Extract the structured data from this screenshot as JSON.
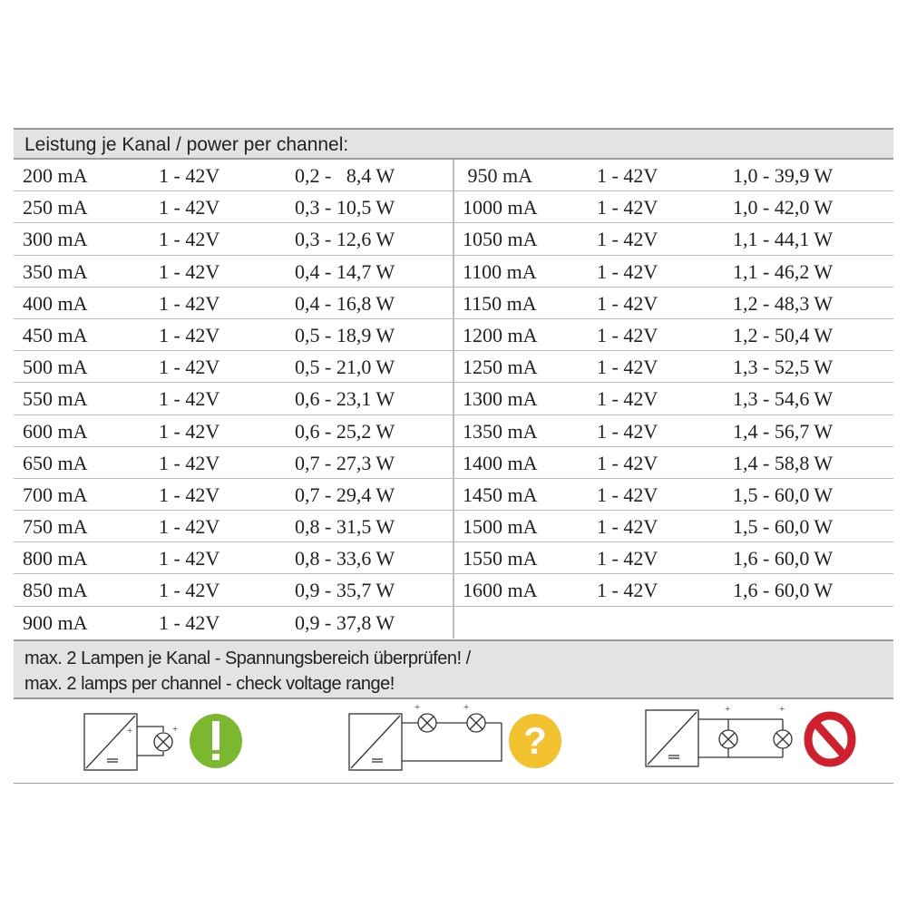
{
  "header": {
    "title": "Leistung je Kanal / power per channel:"
  },
  "left_rows": [
    [
      "200 mA",
      "1 - 42V",
      "0,2 -   8,4 W"
    ],
    [
      "250 mA",
      "1 - 42V",
      "0,3 - 10,5 W"
    ],
    [
      "300 mA",
      "1 - 42V",
      "0,3 - 12,6 W"
    ],
    [
      "350 mA",
      "1 - 42V",
      "0,4 - 14,7 W"
    ],
    [
      "400 mA",
      "1 - 42V",
      "0,4 - 16,8 W"
    ],
    [
      "450 mA",
      "1 - 42V",
      "0,5 - 18,9 W"
    ],
    [
      "500 mA",
      "1 - 42V",
      "0,5 - 21,0 W"
    ],
    [
      "550 mA",
      "1 - 42V",
      "0,6 - 23,1 W"
    ],
    [
      "600 mA",
      "1 - 42V",
      "0,6 - 25,2 W"
    ],
    [
      "650 mA",
      "1 - 42V",
      "0,7 - 27,3 W"
    ],
    [
      "700 mA",
      "1 - 42V",
      "0,7 - 29,4 W"
    ],
    [
      "750 mA",
      "1 - 42V",
      "0,8 - 31,5 W"
    ],
    [
      "800 mA",
      "1 - 42V",
      "0,8 - 33,6 W"
    ],
    [
      "850 mA",
      "1 - 42V",
      "0,9 - 35,7 W"
    ],
    [
      "900 mA",
      "1 - 42V",
      "0,9 - 37,8 W"
    ]
  ],
  "right_rows": [
    [
      " 950 mA",
      "1 - 42V",
      "1,0 - 39,9 W"
    ],
    [
      "1000 mA",
      "1 - 42V",
      "1,0 - 42,0 W"
    ],
    [
      "1050 mA",
      "1 - 42V",
      "1,1 - 44,1 W"
    ],
    [
      "1100 mA",
      "1 - 42V",
      "1,1 - 46,2 W"
    ],
    [
      "1150 mA",
      "1 - 42V",
      "1,2 - 48,3 W"
    ],
    [
      "1200 mA",
      "1 - 42V",
      "1,2 - 50,4 W"
    ],
    [
      "1250 mA",
      "1 - 42V",
      "1,3 - 52,5 W"
    ],
    [
      "1300 mA",
      "1 - 42V",
      "1,3 - 54,6 W"
    ],
    [
      "1350 mA",
      "1 - 42V",
      "1,4 - 56,7 W"
    ],
    [
      "1400 mA",
      "1 - 42V",
      "1,4 - 58,8 W"
    ],
    [
      "1450 mA",
      "1 - 42V",
      "1,5 - 60,0 W"
    ],
    [
      "1500 mA",
      "1 - 42V",
      "1,5 - 60,0 W"
    ],
    [
      "1550 mA",
      "1 - 42V",
      "1,6 - 60,0 W"
    ],
    [
      "1600 mA",
      "1 - 42V",
      "1,6 - 60,0 W"
    ]
  ],
  "footer": {
    "line1": "max. 2 Lampen je Kanal - Spannungsbereich überprüfen! /",
    "line2": "max. 2 lamps per channel - check voltage range!"
  },
  "diagrams": [
    {
      "name": "single-lamp",
      "status_icon": "exclamation-icon",
      "color": "#7cb82f",
      "plus": "+",
      "minus": "-"
    },
    {
      "name": "series-lamps",
      "status_icon": "question-icon",
      "color": "#f2c12e",
      "plus": "+",
      "minus": "-"
    },
    {
      "name": "parallel-lamps",
      "status_icon": "prohibited-icon",
      "color": "#d0202e",
      "plus": "+",
      "minus": "-"
    }
  ]
}
